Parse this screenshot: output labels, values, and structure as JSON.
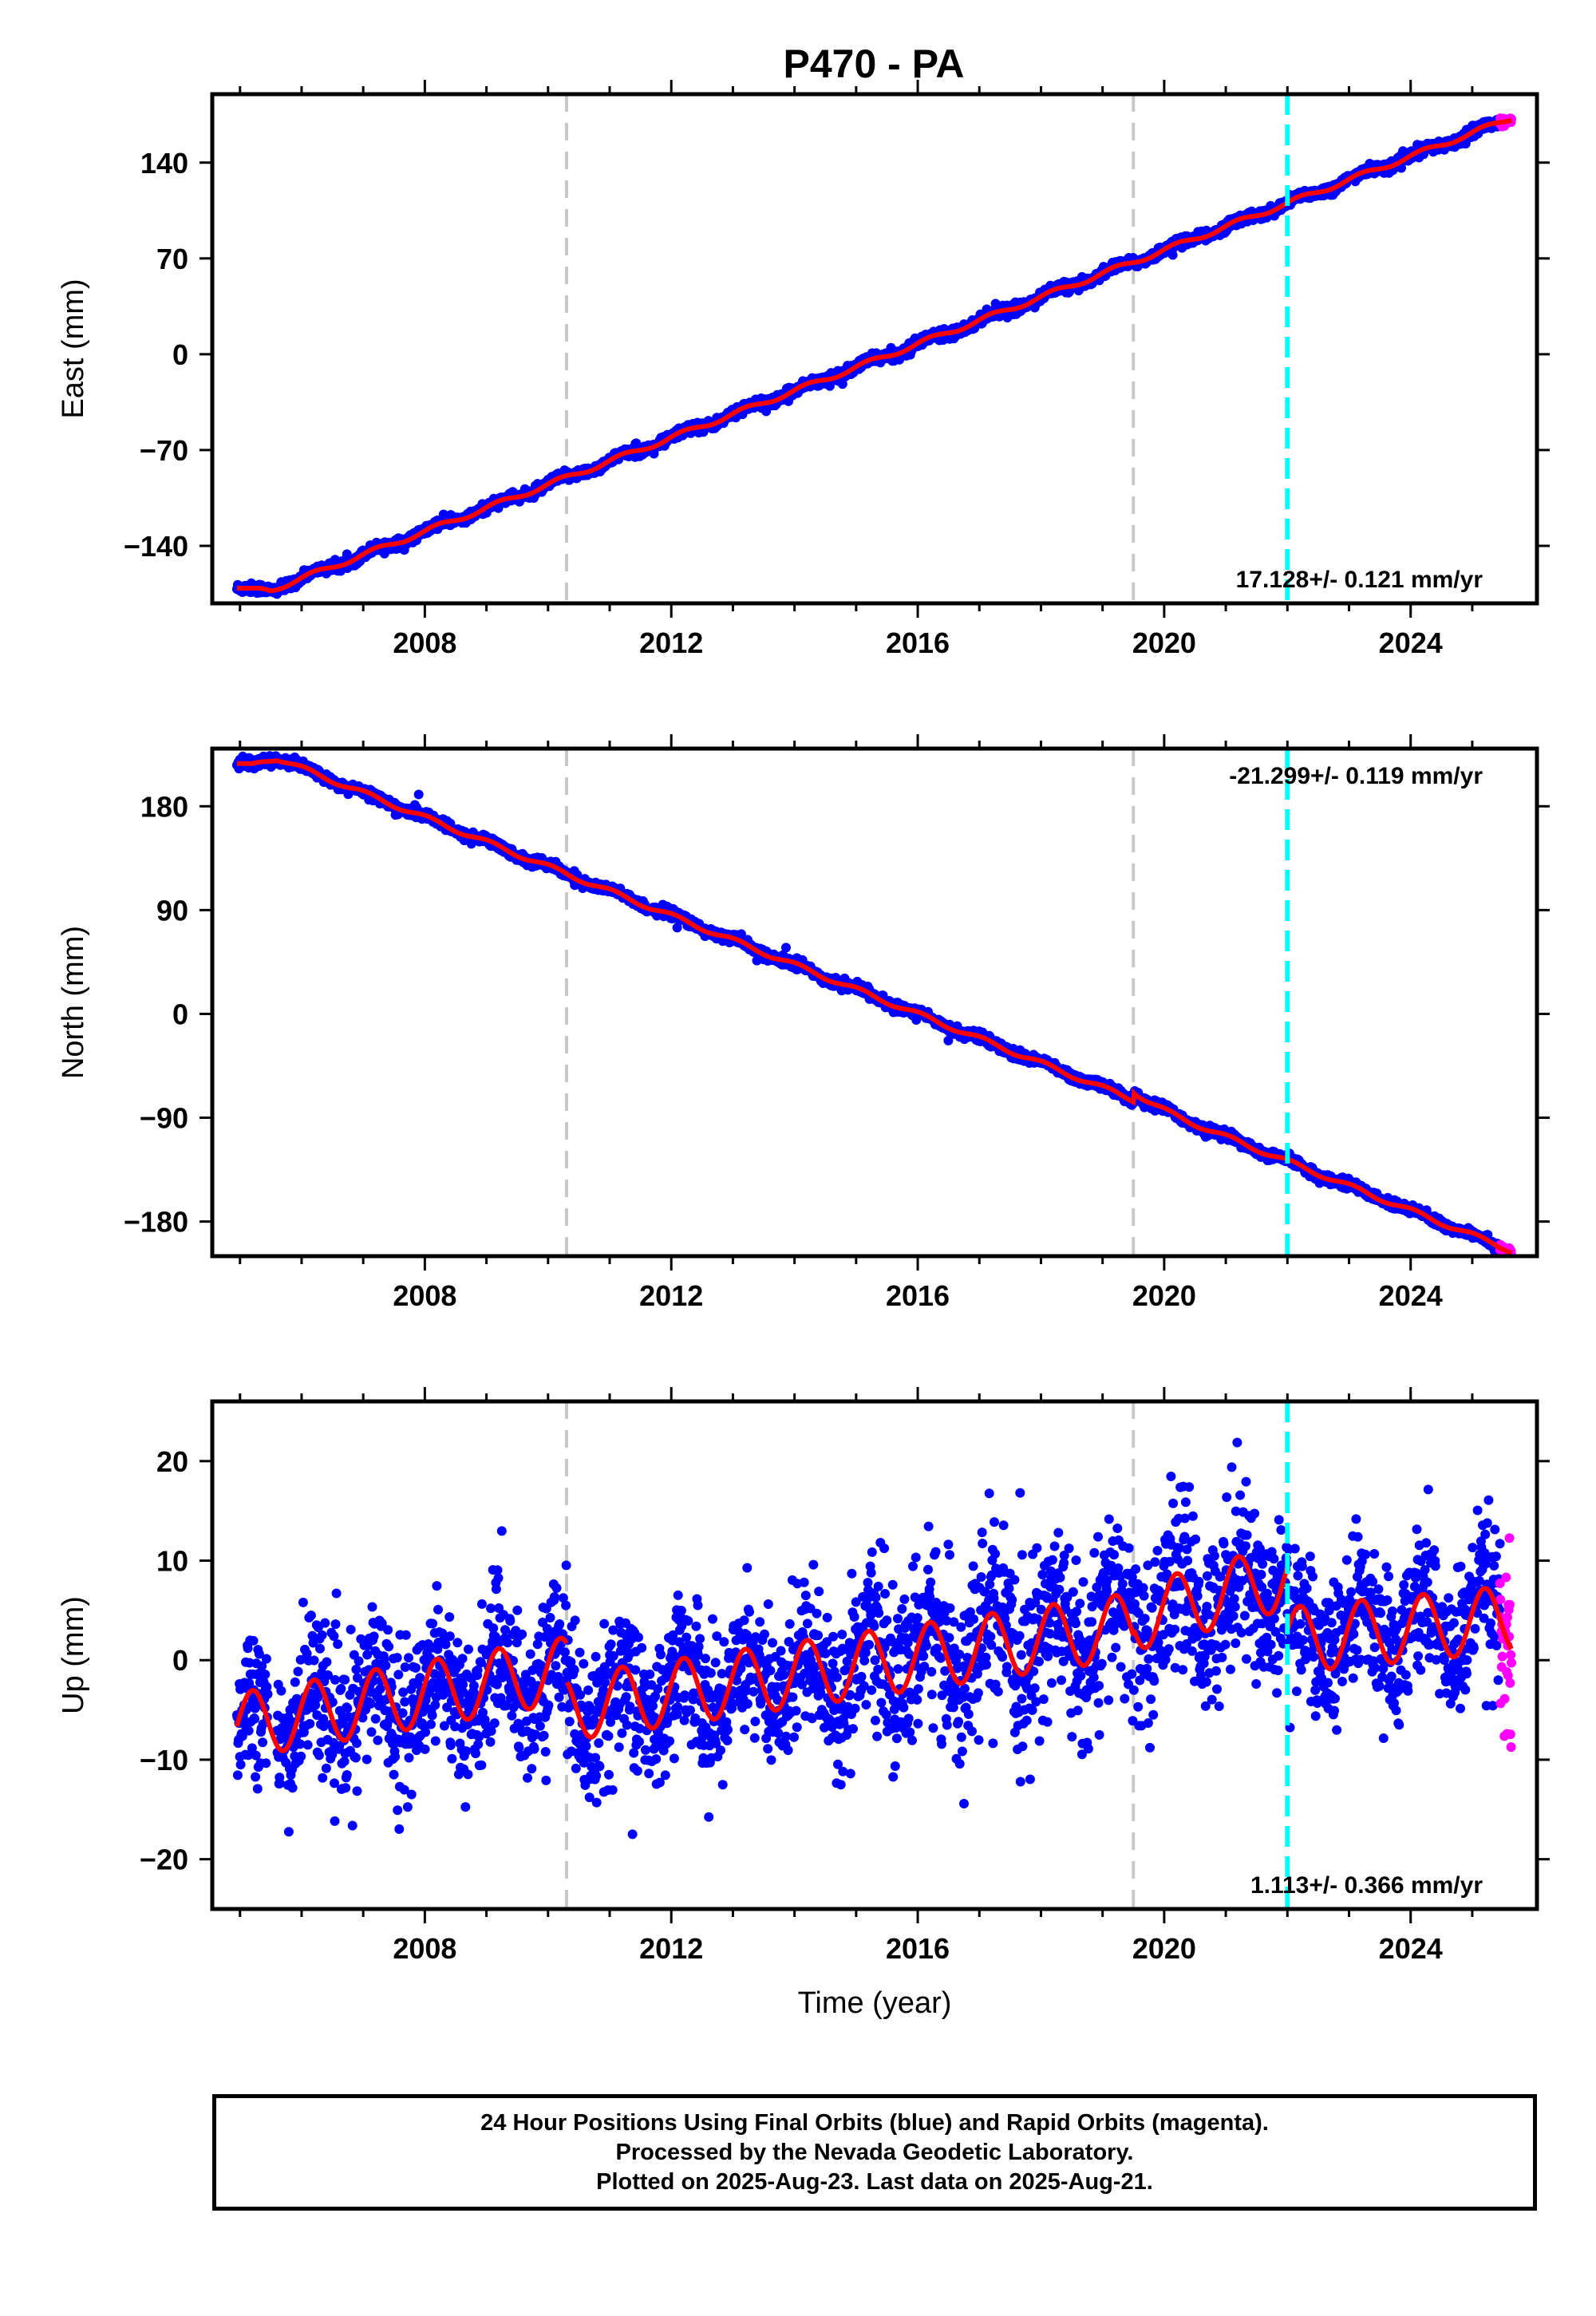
{
  "title": "P470 - PA",
  "colors": {
    "final_orbits": "#0000ff",
    "rapid_orbits": "#ff00ff",
    "model_fit": "#ff0000",
    "equipment_change_line": "#c8c8c8",
    "event_line": "#00ffff",
    "frame": "#000000"
  },
  "chart_data": [
    {
      "type": "scatter",
      "ylabel": "East (mm)",
      "xlabel": "",
      "xlim": [
        2004.55,
        2026.05
      ],
      "ylim": [
        -182,
        190
      ],
      "yticks": [
        -140,
        -70,
        0,
        70,
        140
      ],
      "yticklabels": [
        "−140",
        "−70",
        "0",
        "70",
        "140"
      ],
      "xticks": [
        2008,
        2012,
        2016,
        2020,
        2024
      ],
      "xticklabels": [
        "2008",
        "2012",
        "2016",
        "2020",
        "2024"
      ],
      "rate_text": "17.128+/- 0.121 mm/yr",
      "rate_position": "bottom-right",
      "dashed_gray_x": [
        2010.3,
        2019.5
      ],
      "dashed_cyan_x": [
        2022.0
      ],
      "trend": {
        "x0": 2016.0,
        "y0": 7.5,
        "slope": 17.128
      },
      "seasonal": {
        "amplitude": 1.8,
        "phase": 0.3
      },
      "scatter_sd": 1.8,
      "start_plateau": {
        "until": 2005.5,
        "y": -171
      },
      "final_data": {
        "start": 2004.95,
        "end": 2025.45
      },
      "rapid_data": {
        "start": 2025.45,
        "end": 2025.64
      },
      "grid": false
    },
    {
      "type": "scatter",
      "ylabel": "North (mm)",
      "xlabel": "",
      "xlim": [
        2004.55,
        2026.05
      ],
      "ylim": [
        -210,
        230
      ],
      "yticks": [
        -180,
        -90,
        0,
        90,
        180
      ],
      "yticklabels": [
        "−180",
        "−90",
        "0",
        "90",
        "180"
      ],
      "xticks": [
        2008,
        2012,
        2016,
        2020,
        2024
      ],
      "xticklabels": [
        "2008",
        "2012",
        "2016",
        "2020",
        "2024"
      ],
      "rate_text": "-21.299+/- 0.119 mm/yr",
      "rate_position": "top-right",
      "dashed_gray_x": [
        2010.3,
        2019.5
      ],
      "dashed_cyan_x": [
        2022.0
      ],
      "trend": {
        "x0": 2016.0,
        "y0": 0.0,
        "slope": -21.299
      },
      "seasonal": {
        "amplitude": 2.0,
        "phase": 1.2
      },
      "scatter_sd": 2.0,
      "start_plateau": {
        "until": 2005.6,
        "y": 217
      },
      "offsets": [
        {
          "at": 2019.5,
          "value": 8
        }
      ],
      "final_data": {
        "start": 2004.95,
        "end": 2025.45
      },
      "rapid_data": {
        "start": 2025.45,
        "end": 2025.64
      },
      "grid": false
    },
    {
      "type": "scatter",
      "ylabel": "Up (mm)",
      "xlabel": "Time (year)",
      "xlim": [
        2004.55,
        2026.05
      ],
      "ylim": [
        -25,
        26
      ],
      "yticks": [
        -20,
        -10,
        0,
        10,
        20
      ],
      "yticklabels": [
        "−20",
        "−10",
        "0",
        "10",
        "20"
      ],
      "xticks": [
        2008,
        2012,
        2016,
        2020,
        2024
      ],
      "xticklabels": [
        "2008",
        "2012",
        "2016",
        "2020",
        "2024"
      ],
      "rate_text": "1.113+/- 0.366 mm/yr",
      "rate_position": "bottom-right",
      "dashed_gray_x": [
        2010.3,
        2019.5
      ],
      "dashed_cyan_x": [
        2022.0
      ],
      "fit_segments": [
        {
          "from": 2004.95,
          "to": 2010.3,
          "a": -6.6,
          "b": 1.05
        },
        {
          "from": 2010.3,
          "to": 2019.5,
          "a": -4.8,
          "b": 0.9
        },
        {
          "from": 2019.5,
          "to": 2022.0,
          "a": 4.2,
          "b": 1.7
        },
        {
          "from": 2022.0,
          "to": 2025.64,
          "a": 2.0,
          "b": 0.6
        }
      ],
      "seasonal": {
        "amplitude": 3.3,
        "phase": 0.3
      },
      "scatter_sd": 3.6,
      "final_data": {
        "start": 2004.95,
        "end": 2025.45
      },
      "rapid_data": {
        "start": 2025.45,
        "end": 2025.64
      },
      "grid": false
    }
  ],
  "caption": {
    "line1": "24 Hour Positions Using Final Orbits (blue) and Rapid Orbits (magenta).",
    "line2": "Processed by the Nevada Geodetic Laboratory.",
    "line3": "Plotted on 2025-Aug-23. Last data on 2025-Aug-21."
  }
}
